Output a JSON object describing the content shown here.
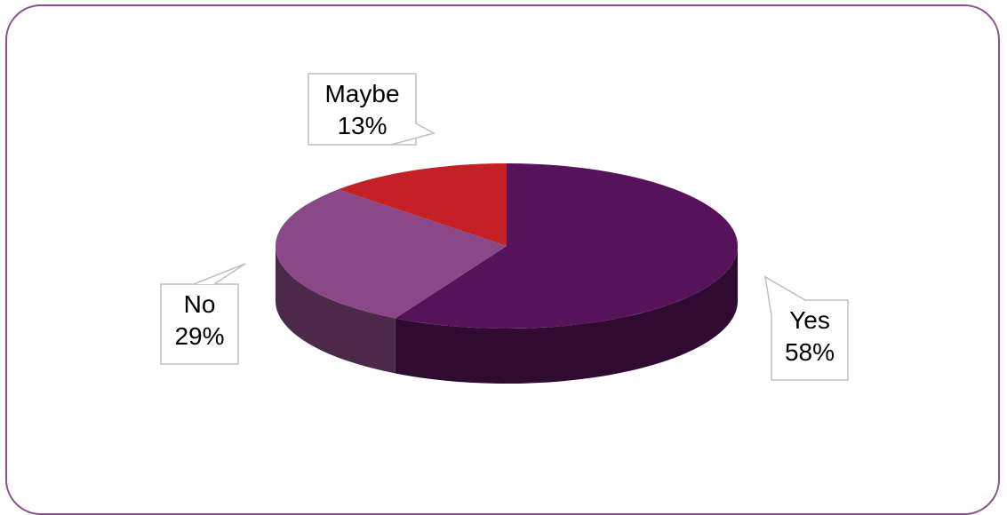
{
  "chart_data": {
    "type": "pie",
    "style": "3d",
    "title": "",
    "slices": [
      {
        "label": "Yes",
        "value": 58,
        "percent_label": "58%",
        "color": "#561359"
      },
      {
        "label": "No",
        "value": 29,
        "percent_label": "29%",
        "color": "#8b4888"
      },
      {
        "label": "Maybe",
        "value": 13,
        "percent_label": "13%",
        "color": "#c62027"
      }
    ],
    "data_labels": "callouts"
  },
  "colors": {
    "frame_border": "#8a4e91",
    "background": "#ffffff"
  }
}
